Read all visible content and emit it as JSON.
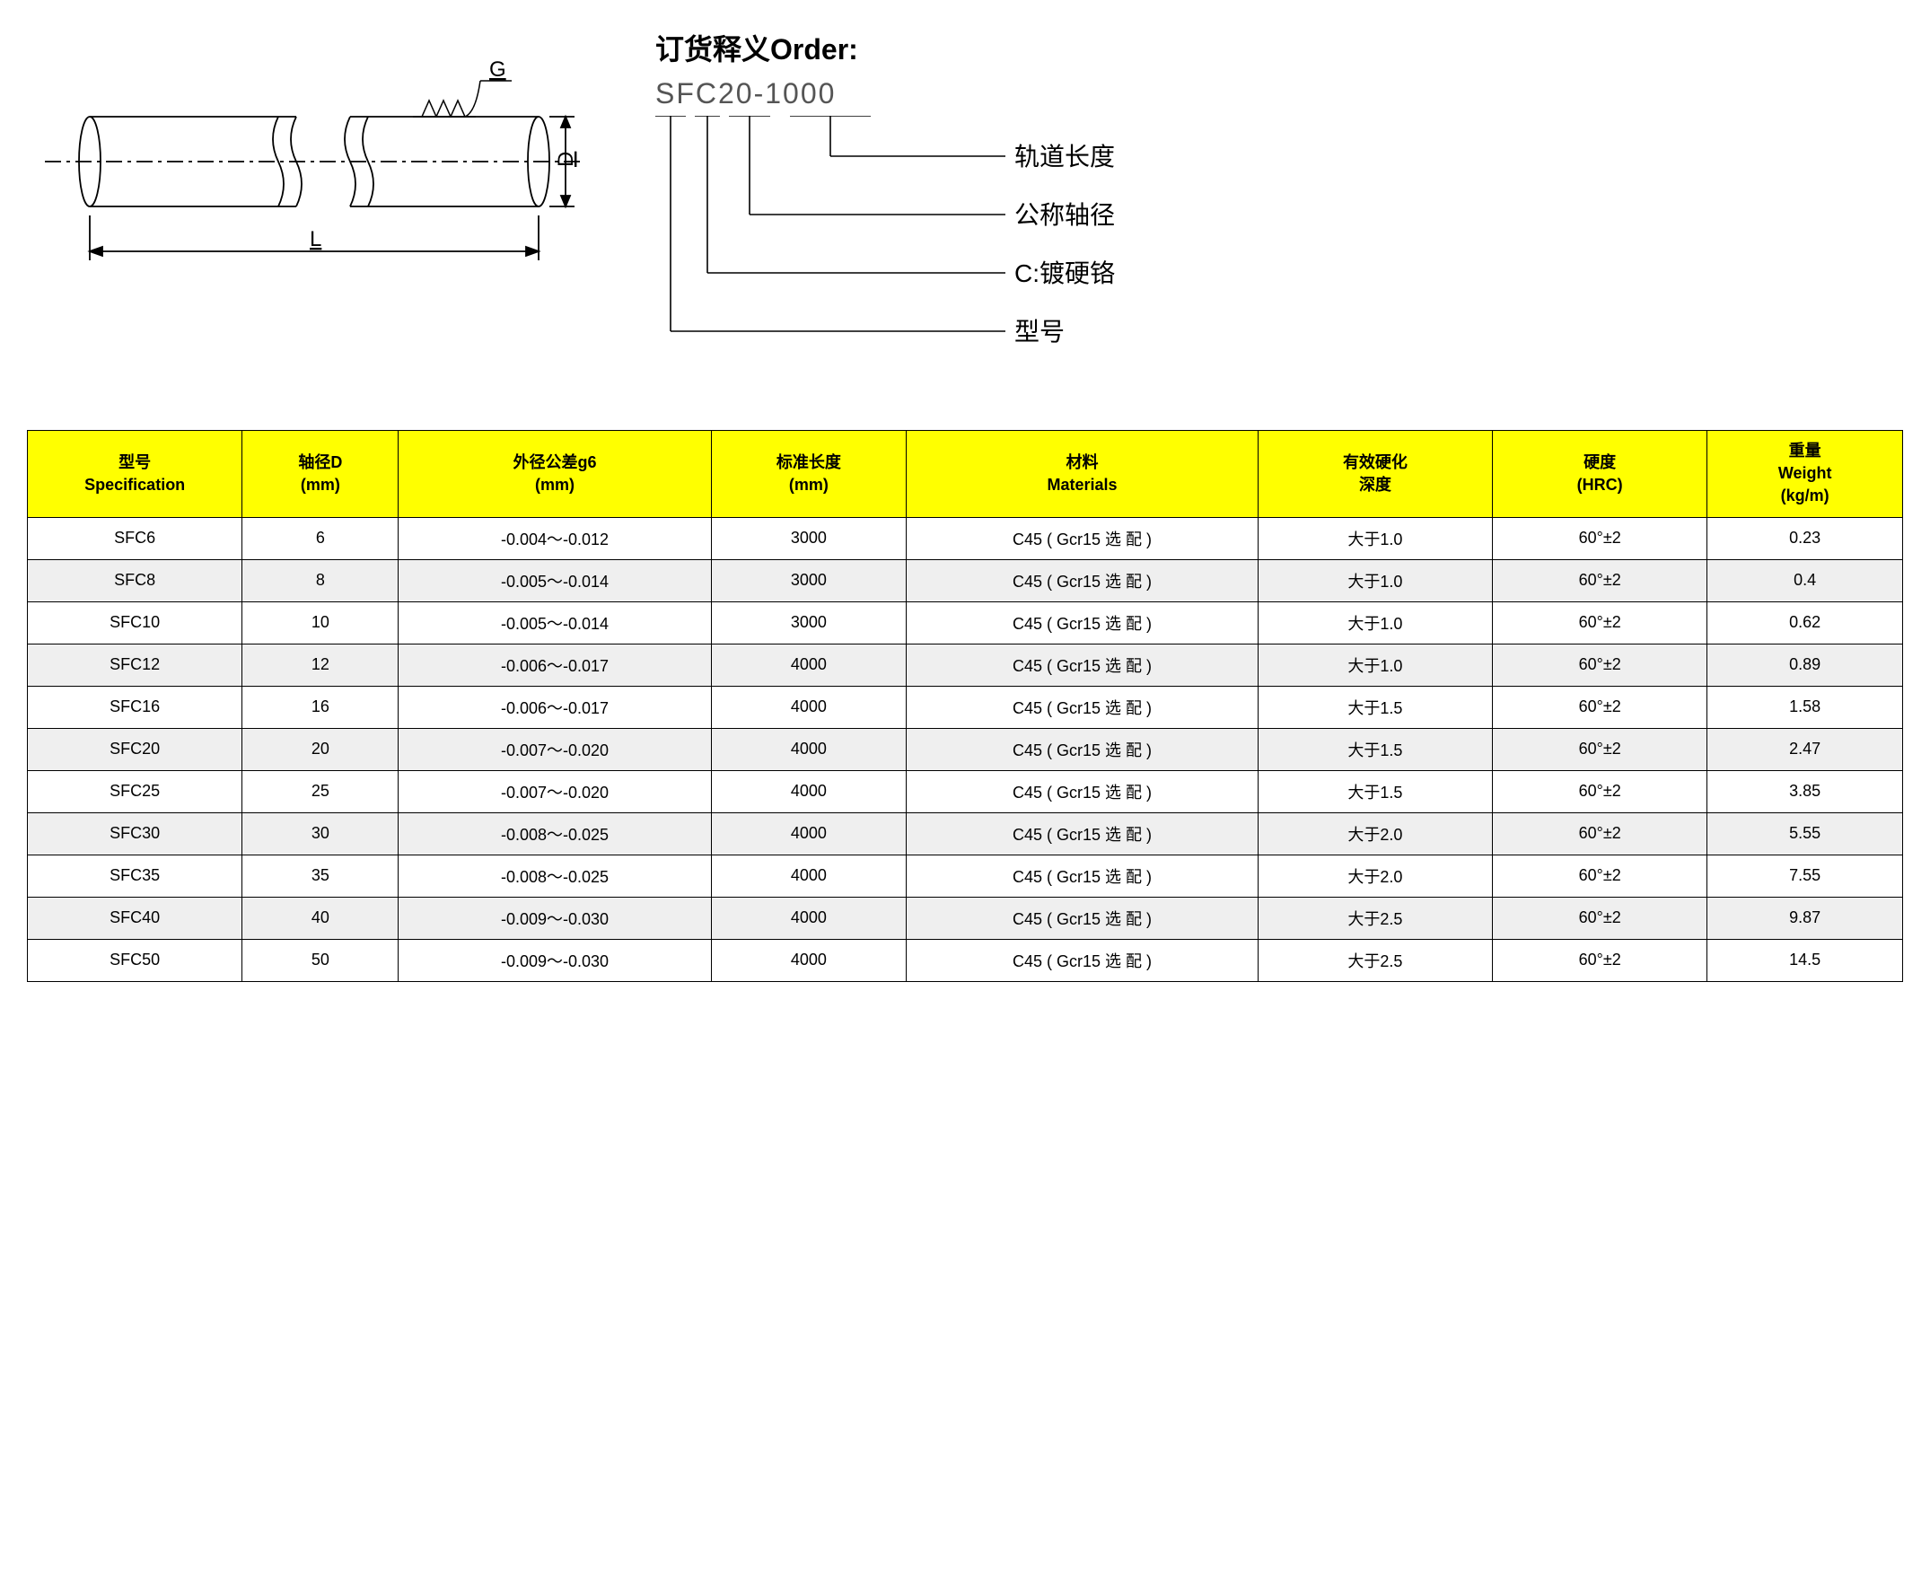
{
  "diagram": {
    "label_G": "G",
    "label_D": "D",
    "label_L": "L",
    "stroke": "#000000",
    "stroke_width": 1.8,
    "font_size": 22
  },
  "order": {
    "title": "订货释义Order:",
    "code": "SFC20-1000",
    "labels": [
      "轨道长度",
      "公称轴径",
      "C:镀硬铬",
      "型号"
    ],
    "stroke": "#000000",
    "label_fontsize": 28,
    "title_fontsize": 32,
    "code_fontsize": 32
  },
  "table": {
    "header_bg": "#ffff00",
    "alt_row_bg": "#efefef",
    "border_color": "#000000",
    "font_size": 18,
    "col_widths_pct": [
      11,
      8,
      16,
      10,
      18,
      12,
      11,
      10
    ],
    "columns": [
      {
        "line1": "型号",
        "line2": "Specification"
      },
      {
        "line1": "轴径D",
        "line2": "(mm)"
      },
      {
        "line1": "外径公差g6",
        "line2": "(mm)"
      },
      {
        "line1": "标准长度",
        "line2": "(mm)"
      },
      {
        "line1": "材料",
        "line2": "Materials"
      },
      {
        "line1": "有效硬化",
        "line2": "深度"
      },
      {
        "line1": "硬度",
        "line2": "(HRC)"
      },
      {
        "line1": "重量",
        "line2": "Weight",
        "line3": "(kg/m)"
      }
    ],
    "rows": [
      [
        "SFC6",
        "6",
        "-0.004～-0.012",
        "3000",
        "C45 ( Gcr15 选 配 )",
        "大于1.0",
        "60°±2",
        "0.23"
      ],
      [
        "SFC8",
        "8",
        "-0.005～-0.014",
        "3000",
        "C45 ( Gcr15 选 配 )",
        "大于1.0",
        "60°±2",
        "0.4"
      ],
      [
        "SFC10",
        "10",
        "-0.005～-0.014",
        "3000",
        "C45 ( Gcr15 选 配 )",
        "大于1.0",
        "60°±2",
        "0.62"
      ],
      [
        "SFC12",
        "12",
        "-0.006～-0.017",
        "4000",
        "C45 ( Gcr15 选 配 )",
        "大于1.0",
        "60°±2",
        "0.89"
      ],
      [
        "SFC16",
        "16",
        "-0.006～-0.017",
        "4000",
        "C45 ( Gcr15 选 配 )",
        "大于1.5",
        "60°±2",
        "1.58"
      ],
      [
        "SFC20",
        "20",
        "-0.007～-0.020",
        "4000",
        "C45 ( Gcr15 选 配 )",
        "大于1.5",
        "60°±2",
        "2.47"
      ],
      [
        "SFC25",
        "25",
        "-0.007～-0.020",
        "4000",
        "C45 ( Gcr15 选 配 )",
        "大于1.5",
        "60°±2",
        "3.85"
      ],
      [
        "SFC30",
        "30",
        "-0.008～-0.025",
        "4000",
        "C45 ( Gcr15 选 配 )",
        "大于2.0",
        "60°±2",
        "5.55"
      ],
      [
        "SFC35",
        "35",
        "-0.008～-0.025",
        "4000",
        "C45 ( Gcr15 选 配 )",
        "大于2.0",
        "60°±2",
        "7.55"
      ],
      [
        "SFC40",
        "40",
        "-0.009～-0.030",
        "4000",
        "C45 ( Gcr15 选 配 )",
        "大于2.5",
        "60°±2",
        "9.87"
      ],
      [
        "SFC50",
        "50",
        "-0.009～-0.030",
        "4000",
        "C45 ( Gcr15 选 配 )",
        "大于2.5",
        "60°±2",
        "14.5"
      ]
    ]
  }
}
